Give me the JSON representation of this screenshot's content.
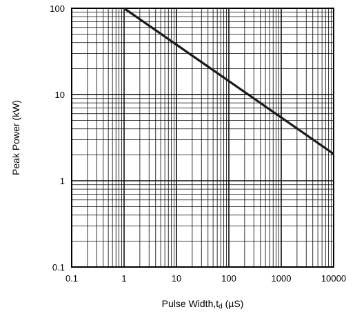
{
  "chart_data": {
    "type": "line",
    "xlabel_main": "Pulse Width,t",
    "xlabel_sub": "d",
    "xlabel_unit": " (µS)",
    "ylabel": "Peak Power (kW)",
    "x_scale": "log",
    "y_scale": "log",
    "xlim": [
      0.1,
      10000
    ],
    "ylim": [
      0.1,
      100
    ],
    "grid": true,
    "x_ticks": [
      {
        "value": 0.1,
        "label": "0.1"
      },
      {
        "value": 1,
        "label": "1"
      },
      {
        "value": 10,
        "label": "10"
      },
      {
        "value": 100,
        "label": "100"
      },
      {
        "value": 1000,
        "label": "1000"
      },
      {
        "value": 10000,
        "label": "10000"
      }
    ],
    "y_ticks": [
      {
        "value": 0.1,
        "label": "0.1"
      },
      {
        "value": 1,
        "label": "1"
      },
      {
        "value": 10,
        "label": "10"
      },
      {
        "value": 100,
        "label": "100"
      }
    ],
    "series": [
      {
        "x": [
          1,
          10000
        ],
        "y": [
          100,
          2.05
        ],
        "color": "#1a1a1a"
      }
    ]
  }
}
